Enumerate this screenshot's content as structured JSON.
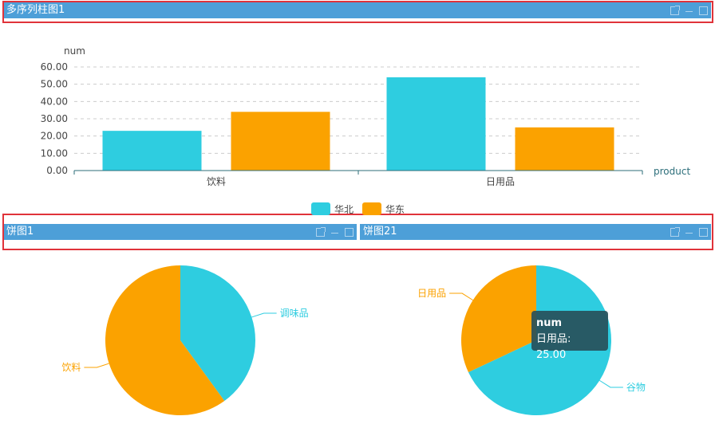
{
  "panels": [
    {
      "title": "多序列柱图1"
    },
    {
      "title": "饼图1"
    },
    {
      "title": "饼图21"
    }
  ],
  "colors": {
    "north": "#2ecde0",
    "east": "#fba200",
    "header": "#4d9fd8",
    "highlight": "#e0333a"
  },
  "chart_data": [
    {
      "type": "bar",
      "xlabel": "product",
      "ylabel": "num",
      "categories": [
        "饮料",
        "日用品"
      ],
      "series": [
        {
          "name": "华北",
          "values": [
            23,
            54
          ]
        },
        {
          "name": "华东",
          "values": [
            34,
            25
          ]
        }
      ],
      "ylim": [
        0,
        60
      ],
      "yticks": [
        "0.00",
        "10.00",
        "20.00",
        "30.00",
        "40.00",
        "50.00",
        "60.00"
      ],
      "grid": true,
      "legend": "bottom"
    },
    {
      "type": "pie",
      "labels": [
        "调味品",
        "饮料"
      ],
      "values": [
        40,
        60
      ]
    },
    {
      "type": "pie",
      "labels": [
        "谷物",
        "日用品"
      ],
      "values": [
        68,
        32
      ],
      "tooltip": {
        "title": "num",
        "text": "日用品: 25.00"
      }
    }
  ]
}
